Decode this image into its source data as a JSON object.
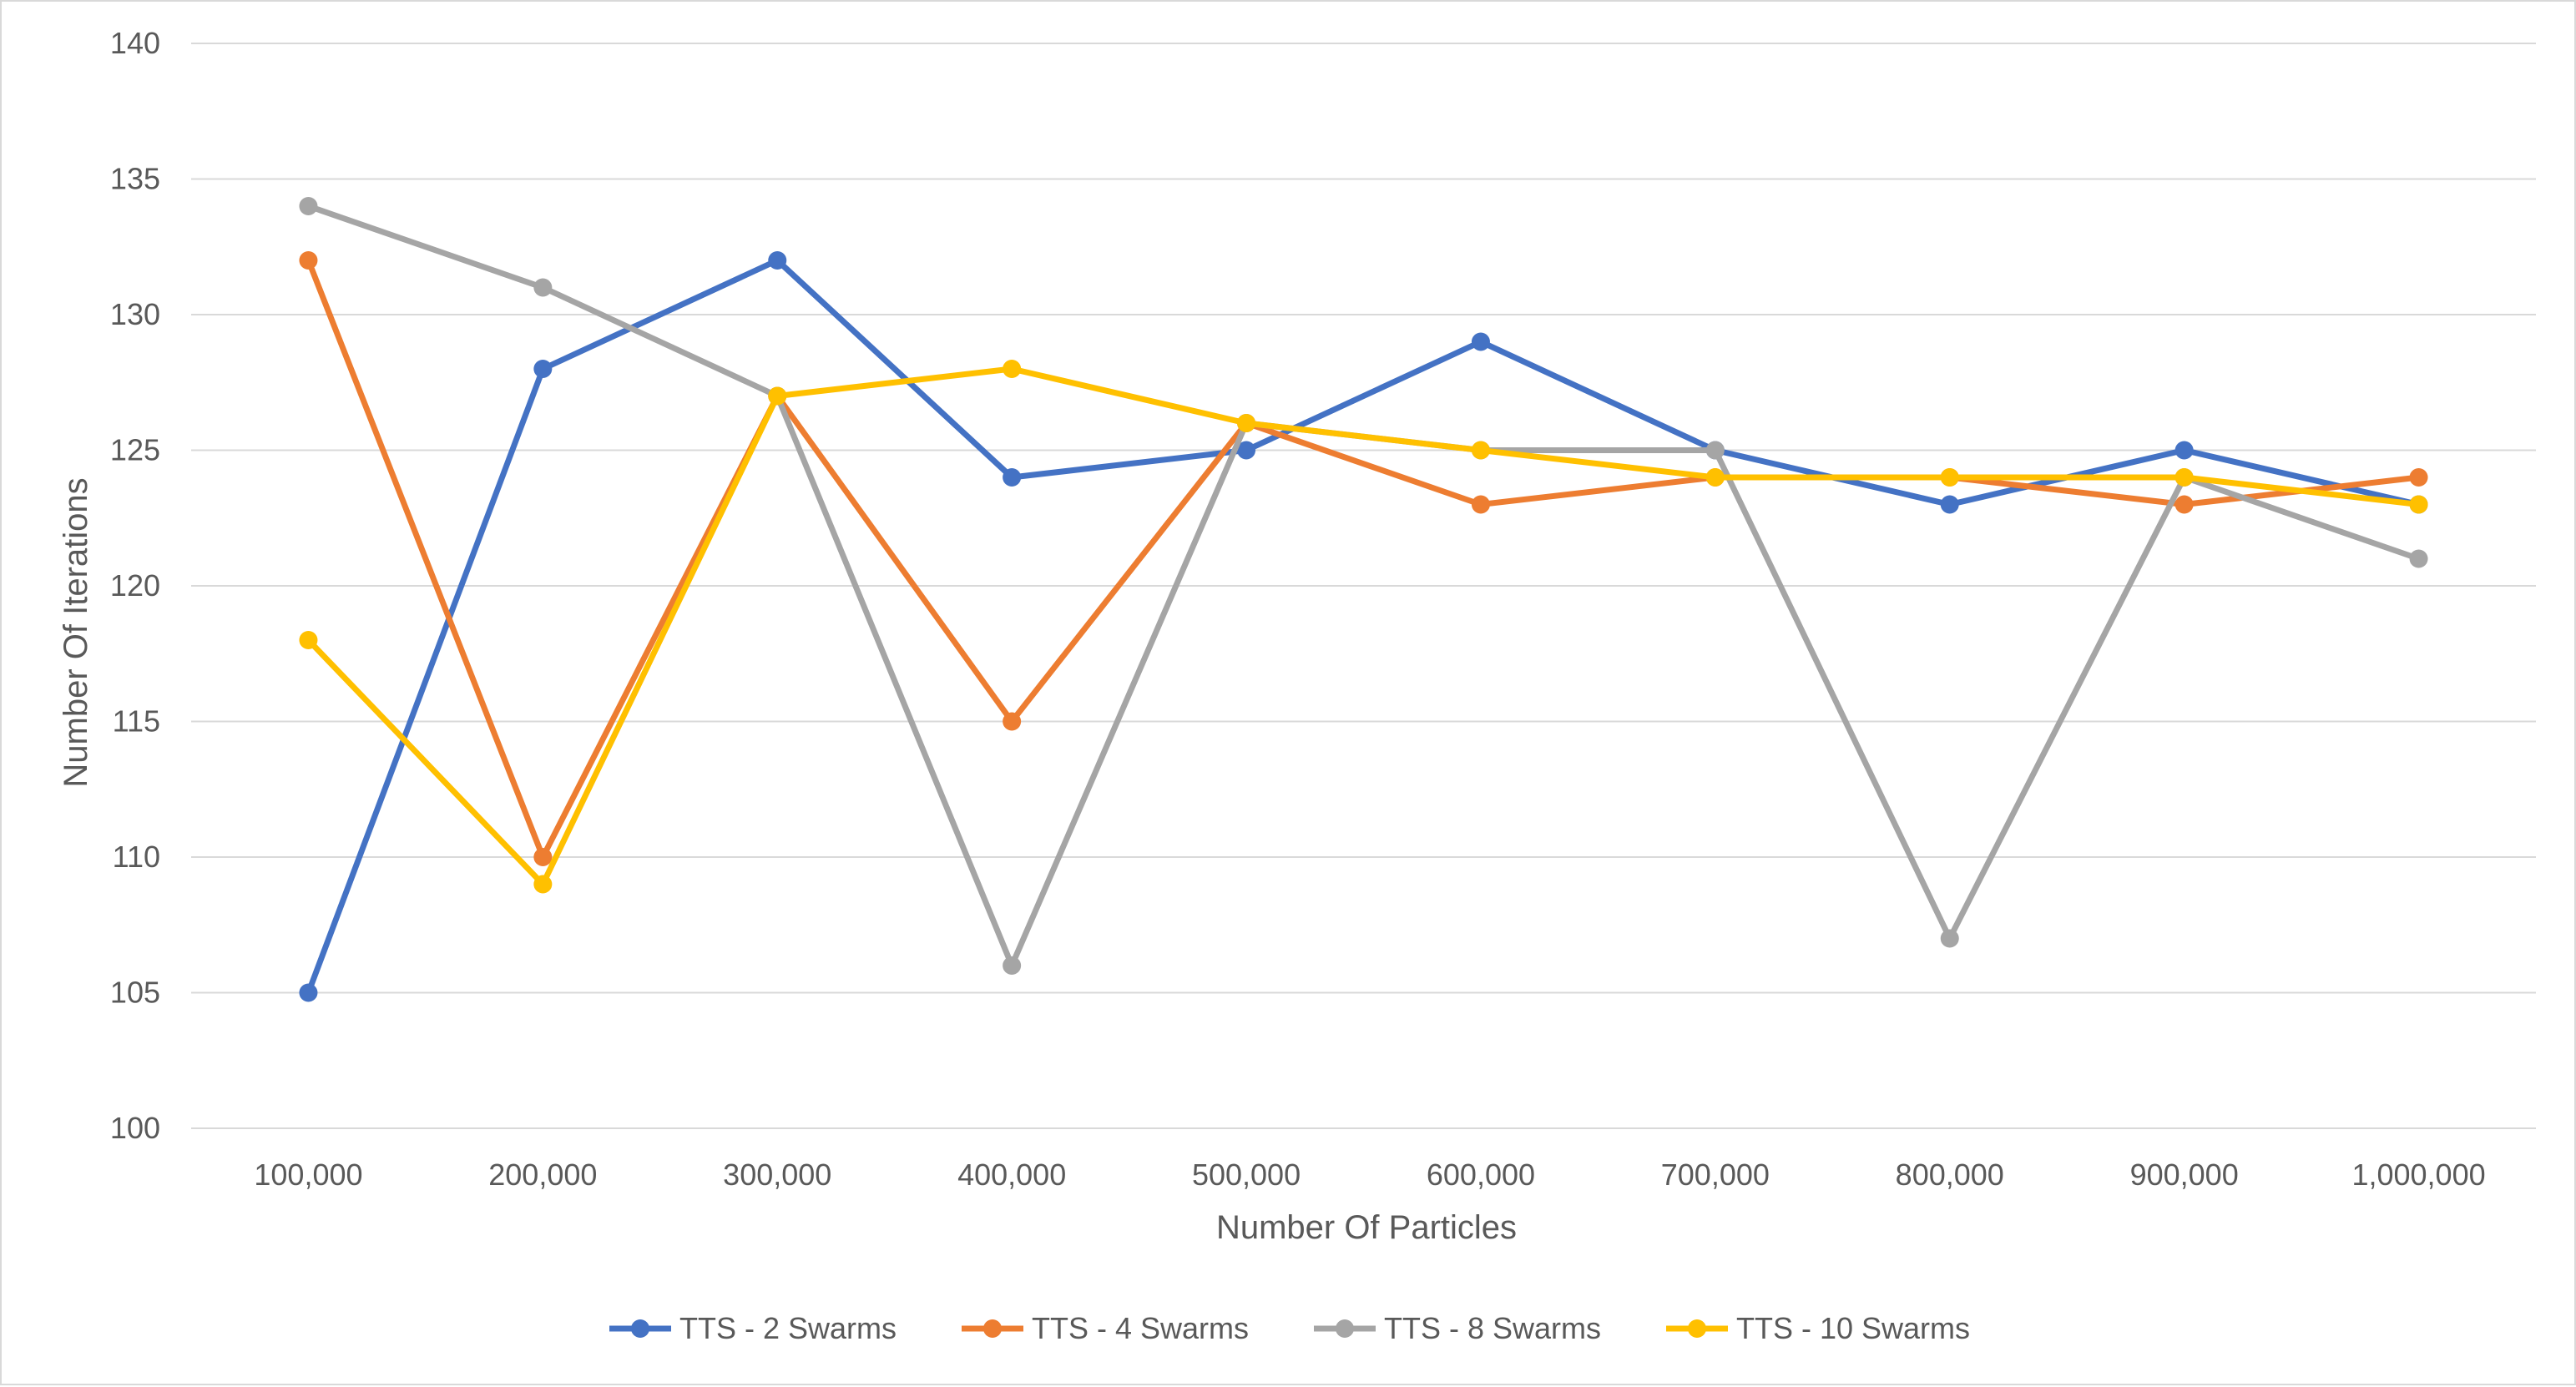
{
  "chart_data": {
    "type": "line",
    "title": "",
    "xlabel": "Number Of Particles",
    "ylabel": "Number Of Iterations",
    "categories": [
      "100,000",
      "200,000",
      "300,000",
      "400,000",
      "500,000",
      "600,000",
      "700,000",
      "800,000",
      "900,000",
      "1,000,000"
    ],
    "ylim": [
      100,
      140
    ],
    "yticks": [
      100,
      105,
      110,
      115,
      120,
      125,
      130,
      135,
      140
    ],
    "grid": true,
    "legend_position": "bottom",
    "series": [
      {
        "name": "TTS - 2 Swarms",
        "color": "#4472c4",
        "values": [
          105,
          128,
          132,
          124,
          125,
          129,
          125,
          123,
          125,
          123
        ]
      },
      {
        "name": "TTS - 4 Swarms",
        "color": "#ed7d31",
        "values": [
          132,
          110,
          127,
          115,
          126,
          123,
          124,
          124,
          123,
          124
        ]
      },
      {
        "name": "TTS - 8 Swarms",
        "color": "#a5a5a5",
        "values": [
          134,
          131,
          127,
          106,
          126,
          125,
          125,
          107,
          124,
          121
        ]
      },
      {
        "name": "TTS - 10 Swarms",
        "color": "#ffc000",
        "values": [
          118,
          109,
          127,
          128,
          126,
          125,
          124,
          124,
          124,
          123
        ]
      }
    ]
  }
}
